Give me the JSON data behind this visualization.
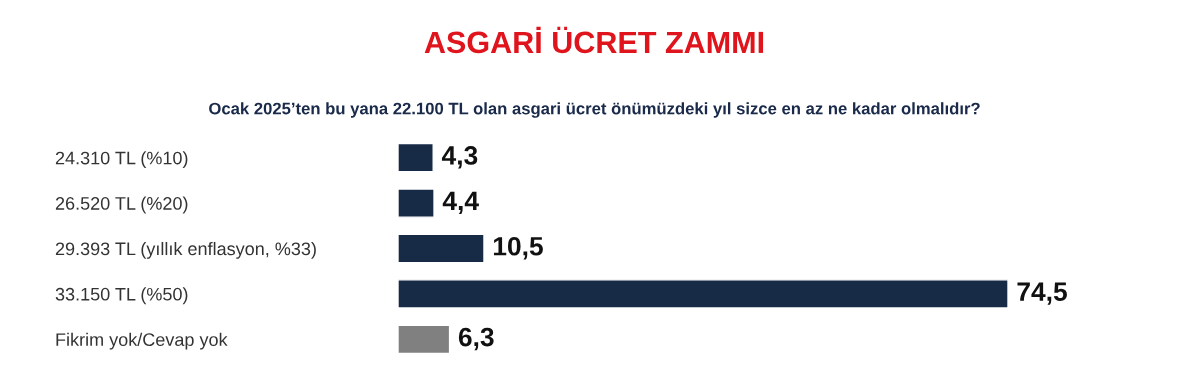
{
  "chart_data": {
    "type": "bar",
    "orientation": "horizontal",
    "title": "ASGARİ ÜCRET ZAMMI",
    "subtitle": "Ocak 2025’ten bu yana 22.100 TL olan asgari ücret önümüzdeki yıl sizce en az ne kadar olmalıdır?",
    "categories": [
      "24.310 TL (%10)",
      "26.520 TL (%20)",
      "29.393 TL (yıllık enflasyon, %33)",
      "33.150 TL (%50)",
      "Fikrim yok/Cevap yok"
    ],
    "values": [
      4.3,
      4.4,
      10.5,
      74.5,
      6.3
    ],
    "value_labels": [
      "4,3",
      "4,4",
      "10,5",
      "74,5",
      "6,3"
    ],
    "colors": [
      "#172a46",
      "#172a46",
      "#172a46",
      "#172a46",
      "#808080"
    ]
  }
}
